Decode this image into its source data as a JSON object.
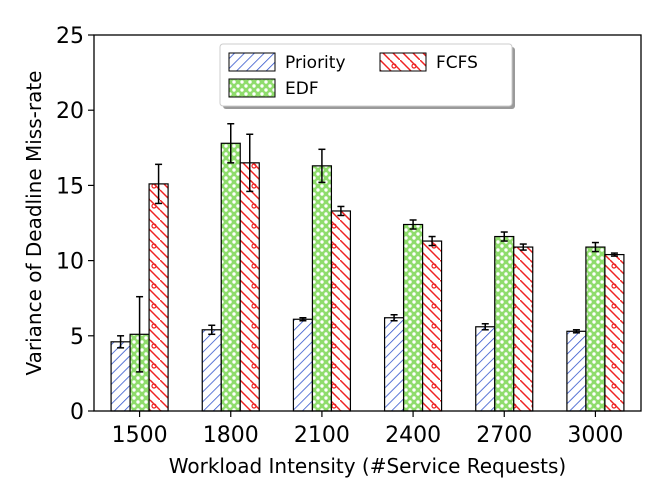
{
  "chart_data": {
    "type": "bar",
    "xlabel": "Workload Intensity (#Service Requests)",
    "ylabel": "Variance of Deadline Miss-rate",
    "ylim": [
      0,
      25
    ],
    "yticks": [
      0,
      5,
      10,
      15,
      20,
      25
    ],
    "categories": [
      "1500",
      "1800",
      "2100",
      "2400",
      "2700",
      "3000"
    ],
    "series": [
      {
        "name": "Priority",
        "color": "#3355cc",
        "pattern": "diagonal-hatch",
        "values": [
          4.6,
          5.4,
          6.1,
          6.2,
          5.6,
          5.3
        ],
        "errors": [
          0.4,
          0.3,
          0.1,
          0.2,
          0.2,
          0.1
        ]
      },
      {
        "name": "EDF",
        "color": "#22aa22",
        "fill": "#8fdc6c",
        "pattern": "dots",
        "values": [
          5.1,
          17.8,
          16.3,
          12.4,
          11.6,
          10.9
        ],
        "errors": [
          2.5,
          1.3,
          1.1,
          0.3,
          0.3,
          0.3
        ]
      },
      {
        "name": "FCFS",
        "color": "#ee2222",
        "pattern": "back-diagonal-hatch-with-circles",
        "values": [
          15.1,
          16.5,
          13.3,
          11.3,
          10.9,
          10.4
        ],
        "errors": [
          1.3,
          1.9,
          0.3,
          0.3,
          0.2,
          0.1
        ]
      }
    ],
    "legend": {
      "position": "top-center",
      "columns": 2,
      "order": [
        "Priority",
        "FCFS",
        "EDF"
      ]
    },
    "grid": false
  }
}
